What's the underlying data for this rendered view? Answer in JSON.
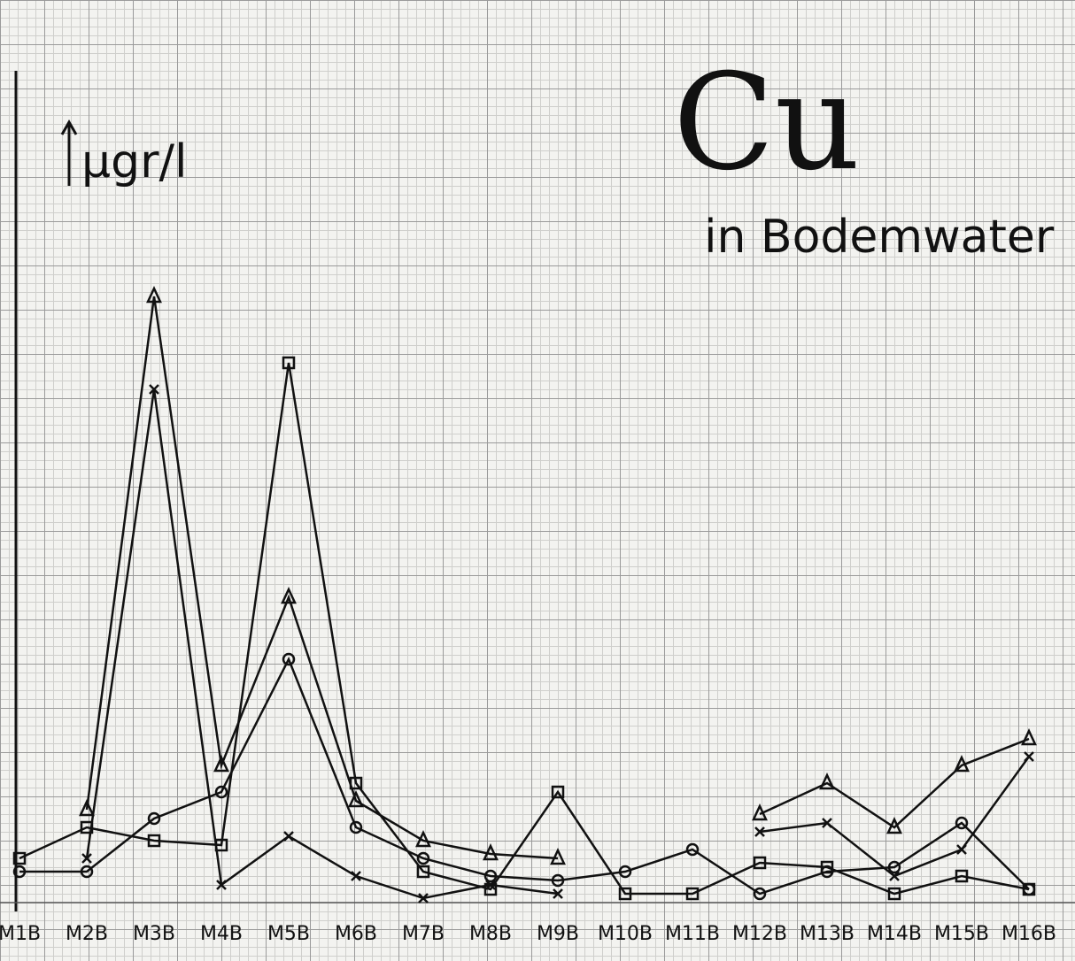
{
  "chart_data": {
    "type": "line",
    "title": "Cu",
    "subtitle": "in Bodemwater",
    "ylabel": "μgr/l",
    "categories": [
      "M1B",
      "M2B",
      "M3B",
      "M4B",
      "M5B",
      "M6B",
      "M7B",
      "M8B",
      "M9B",
      "M10B",
      "M11B",
      "M12B",
      "M13B",
      "M14B",
      "M15B",
      "M16B"
    ],
    "ylim": [
      0,
      100
    ],
    "grid": true,
    "series": [
      {
        "marker": "triangle",
        "color": "#111111",
        "values": [
          null,
          10.5,
          68.5,
          15.5,
          34.5,
          11.5,
          7,
          5.5,
          5,
          null,
          null,
          10,
          13.5,
          8.5,
          15.5,
          18.5
        ]
      },
      {
        "marker": "x",
        "color": "#111111",
        "values": [
          null,
          5,
          58,
          2,
          7.5,
          3,
          0.5,
          2,
          1,
          null,
          null,
          8,
          9,
          3,
          6,
          16.5
        ]
      },
      {
        "marker": "circle",
        "color": "#111111",
        "values": [
          3.5,
          3.5,
          9.5,
          12.5,
          27.5,
          8.5,
          5,
          3,
          2.5,
          3.5,
          6,
          1,
          3.5,
          4,
          9,
          1.5
        ]
      },
      {
        "marker": "square",
        "color": "#111111",
        "values": [
          5,
          8.5,
          7,
          6.5,
          61,
          13.5,
          3.5,
          1.5,
          12.5,
          1,
          1,
          4.5,
          4,
          1,
          3,
          1.5
        ]
      }
    ]
  }
}
